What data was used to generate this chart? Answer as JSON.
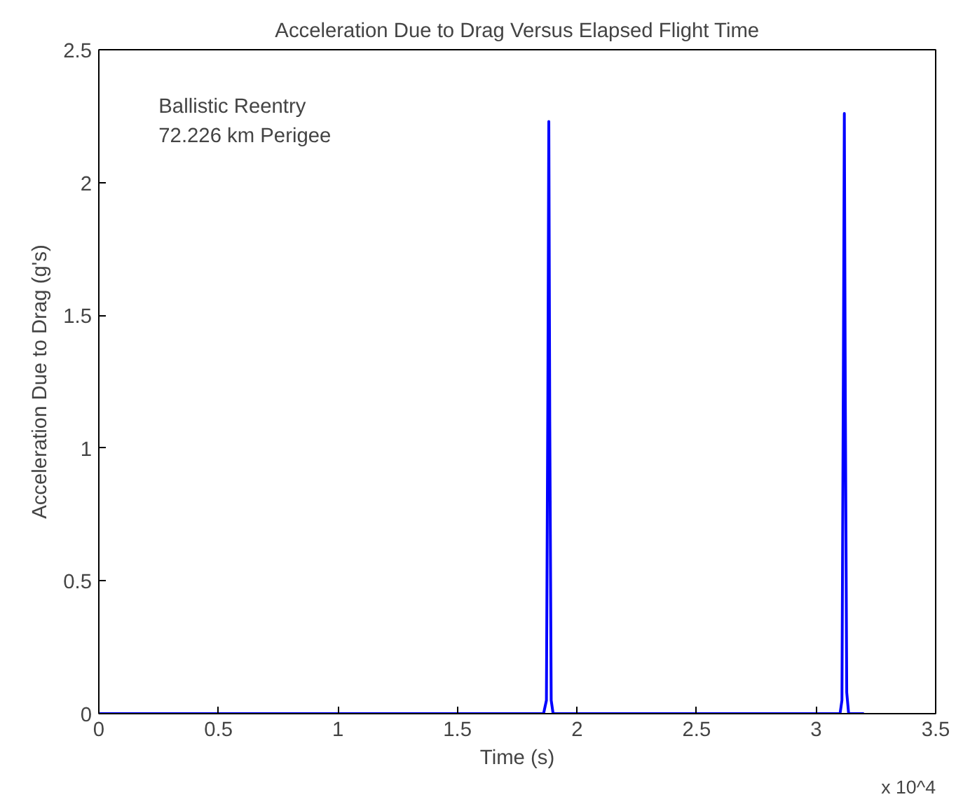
{
  "chart_data": {
    "type": "line",
    "title": "Acceleration Due to Drag Versus Elapsed Flight Time",
    "xlabel": "Time (s)",
    "ylabel": "Acceleration Due to Drag (g's)",
    "annotations": [
      "Ballistic Reentry\n72.226 km Perigee",
      "x 10^4"
    ],
    "x": [
      0,
      1.86,
      1.872,
      1.878,
      1.882,
      1.886,
      1.892,
      1.9,
      3.1,
      3.108,
      3.114,
      3.118,
      3.122,
      3.128,
      3.136,
      3.2
    ],
    "series": [
      {
        "color": "#0000ff",
        "values": [
          0,
          0,
          0.05,
          1.2,
          2.23,
          1.1,
          0.05,
          0,
          0,
          0.05,
          1.3,
          2.26,
          1.2,
          0.08,
          0,
          0
        ]
      }
    ],
    "xlim": [
      0,
      3.5
    ],
    "ylim": [
      0,
      2.5
    ],
    "xticks": [
      0,
      0.5,
      1,
      1.5,
      2,
      2.5,
      3,
      3.5
    ],
    "yticks": [
      0,
      0.5,
      1,
      1.5,
      2,
      2.5
    ],
    "grid": false,
    "marker": "none",
    "line_style": "solid"
  }
}
